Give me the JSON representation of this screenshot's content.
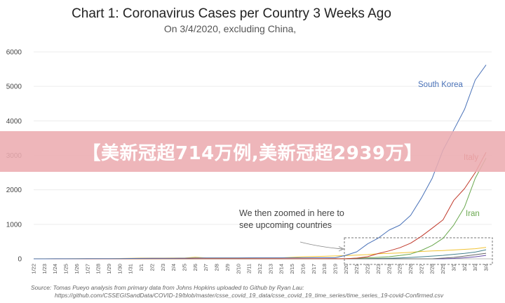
{
  "banner": {
    "text": "【美新冠超714万例,美新冠超2939万】"
  },
  "chart_data": {
    "type": "line",
    "title": "Chart 1: Coronavirus Cases per Country 3 Weeks Ago",
    "subtitle": "On 3/4/2020, excluding China,",
    "ylim": [
      0,
      6000
    ],
    "yticks": [
      0,
      1000,
      2000,
      3000,
      4000,
      5000,
      6000
    ],
    "categories": [
      "1/22",
      "1/23",
      "1/24",
      "1/25",
      "1/26",
      "1/27",
      "1/28",
      "1/29",
      "1/30",
      "1/31",
      "2/1",
      "2/2",
      "2/3",
      "2/4",
      "2/5",
      "2/6",
      "2/7",
      "2/8",
      "2/9",
      "2/10",
      "2/11",
      "2/12",
      "2/13",
      "2/14",
      "2/15",
      "2/16",
      "2/17",
      "2/18",
      "2/19",
      "2/20",
      "2/21",
      "2/22",
      "2/23",
      "2/24",
      "2/25",
      "2/26",
      "2/27",
      "2/28",
      "2/29",
      "3/1",
      "3/2",
      "3/3",
      "3/4"
    ],
    "series": [
      {
        "name": "South Korea",
        "color": "#4a72b8",
        "label_show": true,
        "values": [
          1,
          1,
          2,
          2,
          3,
          4,
          4,
          4,
          4,
          11,
          12,
          15,
          15,
          16,
          19,
          23,
          24,
          24,
          25,
          27,
          28,
          28,
          28,
          28,
          28,
          29,
          30,
          31,
          31,
          104,
          204,
          433,
          602,
          833,
          977,
          1261,
          1766,
          2337,
          3150,
          3736,
          4335,
          5186,
          5621
        ]
      },
      {
        "name": "Italy",
        "color": "#c0392b",
        "label_show": true,
        "values": [
          0,
          0,
          0,
          0,
          0,
          0,
          0,
          0,
          0,
          2,
          2,
          2,
          2,
          2,
          2,
          2,
          3,
          3,
          3,
          3,
          3,
          3,
          3,
          3,
          3,
          3,
          3,
          3,
          3,
          3,
          20,
          62,
          155,
          229,
          322,
          453,
          655,
          888,
          1128,
          1694,
          2036,
          2502,
          3089
        ]
      },
      {
        "name": "Iran",
        "color": "#6aa84f",
        "label_show": true,
        "values": [
          0,
          0,
          0,
          0,
          0,
          0,
          0,
          0,
          0,
          0,
          0,
          0,
          0,
          0,
          0,
          0,
          0,
          0,
          0,
          0,
          0,
          0,
          0,
          0,
          0,
          0,
          0,
          0,
          2,
          5,
          18,
          28,
          43,
          61,
          95,
          139,
          245,
          388,
          593,
          978,
          1501,
          2336,
          2922
        ]
      },
      {
        "name": "",
        "color": "#f1c232",
        "label_show": false,
        "values": [
          2,
          2,
          2,
          2,
          4,
          4,
          7,
          7,
          11,
          15,
          20,
          20,
          20,
          22,
          22,
          45,
          25,
          25,
          26,
          26,
          26,
          28,
          28,
          29,
          43,
          59,
          66,
          74,
          84,
          94,
          105,
          122,
          147,
          159,
          170,
          189,
          214,
          228,
          241,
          256,
          274,
          293,
          331
        ]
      },
      {
        "name": "",
        "color": "#666666",
        "label_show": false,
        "values": [
          0,
          0,
          0,
          0,
          0,
          0,
          0,
          0,
          0,
          0,
          0,
          0,
          0,
          0,
          0,
          0,
          0,
          0,
          0,
          0,
          0,
          0,
          0,
          0,
          0,
          0,
          0,
          0,
          0,
          0,
          0,
          0,
          0,
          0,
          0,
          0,
          0,
          0,
          20,
          40,
          80,
          120,
          160
        ]
      },
      {
        "name": "",
        "color": "#45818e",
        "label_show": false,
        "values": [
          0,
          0,
          0,
          0,
          0,
          0,
          0,
          0,
          0,
          0,
          0,
          0,
          0,
          0,
          0,
          0,
          0,
          0,
          0,
          0,
          0,
          0,
          0,
          0,
          0,
          0,
          0,
          0,
          0,
          0,
          0,
          5,
          10,
          15,
          25,
          40,
          60,
          80,
          100,
          130,
          159,
          196,
          262
        ]
      },
      {
        "name": "",
        "color": "#674ea7",
        "label_show": false,
        "values": [
          0,
          0,
          0,
          0,
          0,
          0,
          0,
          0,
          0,
          0,
          0,
          0,
          0,
          0,
          0,
          0,
          0,
          0,
          0,
          0,
          0,
          0,
          0,
          0,
          0,
          0,
          0,
          0,
          0,
          0,
          0,
          0,
          0,
          0,
          0,
          0,
          0,
          0,
          0,
          10,
          30,
          60,
          100
        ]
      }
    ],
    "annotation": {
      "lines": [
        "We then zoomed in here to",
        "see upcoming countries"
      ]
    },
    "source": [
      "Source: Tomas Pueyo analysis from primary data from Johns Hopkins uploaded to Github by Ryan Lau:",
      "https://github.com/CSSEGISandData/COVID-19/blob/master/csse_covid_19_data/csse_covid_19_time_series/time_series_19-covid-Confirmed.csv"
    ]
  }
}
